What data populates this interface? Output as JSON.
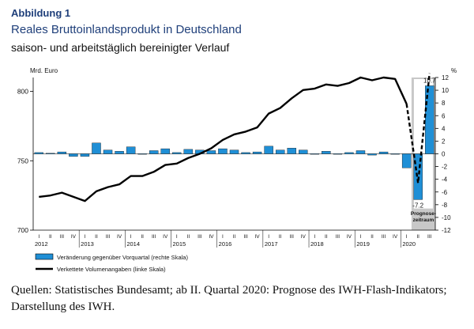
{
  "figure_label": "Abbildung 1",
  "title": "Reales Bruttoinlandsprodukt in Deutschland",
  "subtitle": "saison- und arbeitstäglich bereinigter Verlauf",
  "source_note": "Quellen: Statistisches Bundesamt; ab II. Quartal 2020: Prognose des IWH-Flash-Indikators; Darstellung des IWH.",
  "chart_data": {
    "type": "bar+line",
    "left_axis": {
      "unit_label": "Mrd. Euro",
      "ticks": [
        700,
        750,
        800
      ],
      "lim": [
        700,
        810
      ]
    },
    "right_axis": {
      "unit_label": "%",
      "ticks": [
        12,
        10,
        8,
        6,
        4,
        2,
        0,
        -2,
        -4,
        -6,
        -8,
        -10,
        -12
      ],
      "lim": [
        -12,
        12
      ]
    },
    "quarter_labels": [
      "I",
      "II",
      "III",
      "IV",
      "I",
      "II",
      "III",
      "IV",
      "I",
      "II",
      "III",
      "IV",
      "I",
      "II",
      "III",
      "IV",
      "I",
      "II",
      "III",
      "IV",
      "I",
      "II",
      "III",
      "IV",
      "I",
      "II",
      "III",
      "IV",
      "I",
      "II",
      "III",
      "IV",
      "I",
      "II",
      "III"
    ],
    "year_labels": [
      "2012",
      "2013",
      "2014",
      "2015",
      "2016",
      "2017",
      "2018",
      "2019",
      "2020"
    ],
    "series": [
      {
        "name": "Veränderung gegenüber Vorquartal (rechte Skala)",
        "kind": "bar",
        "values": [
          0.2,
          0.1,
          0.3,
          -0.4,
          -0.4,
          1.7,
          0.6,
          0.4,
          1.1,
          0.0,
          0.5,
          0.8,
          0.2,
          0.7,
          0.6,
          0.5,
          0.8,
          0.6,
          0.2,
          0.3,
          1.2,
          0.6,
          0.9,
          0.6,
          0.0,
          0.4,
          0.0,
          0.2,
          0.5,
          -0.2,
          0.3,
          0.0,
          -2.2,
          -7.2,
          10.7
        ],
        "color": "#1f8fd6"
      },
      {
        "name": "Verkettete Volumenangaben (linke Skala)",
        "kind": "line",
        "values": [
          724,
          725,
          727,
          724,
          721,
          728,
          731,
          733,
          739,
          739,
          742,
          747,
          748,
          752,
          755,
          759,
          765,
          769,
          771,
          774,
          784,
          788,
          795,
          801,
          802,
          805,
          804,
          806,
          810,
          808,
          810,
          809,
          791,
          734,
          813
        ],
        "color": "#000000",
        "forecast_from_index": 32
      }
    ],
    "bar_labels": {
      "32": "",
      "33": "-7.2",
      "34": "10.7"
    },
    "forecast_label_line1": "Prognose-",
    "forecast_label_line2": "zeitraum"
  }
}
